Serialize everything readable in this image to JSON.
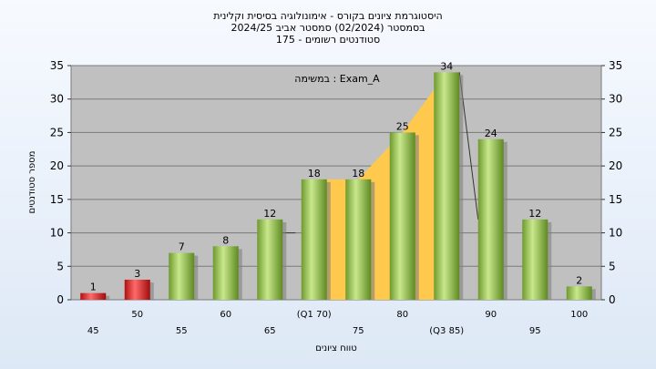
{
  "chart_data": {
    "type": "bar",
    "title": [
      "היסטוגרמת ציונים בקורס - אימונולוגיה בסיסית וקלינית",
      "בסמסטר  (02/2024)  סמסטר אביב 2024/25",
      "סטודנטים רשומים - 175"
    ],
    "annotation": "במשימה : Exam_A",
    "xlabel": "טווח ציונים",
    "ylabel": "מספר סטודנטים",
    "ylim": [
      0,
      35
    ],
    "yticks": [
      0,
      5,
      10,
      15,
      20,
      25,
      30,
      35
    ],
    "grid": true,
    "categories": [
      "45",
      "50",
      "55",
      "60",
      "65",
      "(Q1 70)",
      "75",
      "80",
      "(Q3 85)",
      "90",
      "95",
      "100"
    ],
    "values": [
      1,
      3,
      7,
      8,
      12,
      18,
      18,
      25,
      34,
      24,
      12,
      2
    ],
    "colors": {
      "below_pass": "#e02020",
      "pass": "#8cc040",
      "interquartile_area": "#ffc94d",
      "plot_bg": "#c0c0c0",
      "gridline": "#7a7a7a"
    }
  }
}
